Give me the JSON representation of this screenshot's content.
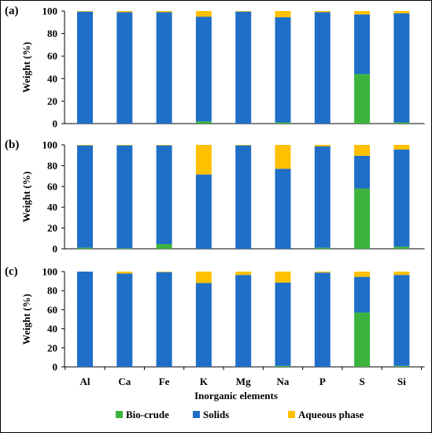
{
  "figure": {
    "x_axis_title": "Inorganic elements",
    "y_axis_title": "Weight (%)"
  },
  "colors": {
    "bio_crude": "#3CB33C",
    "solids": "#1F6FC9",
    "aqueous": "#FFC000"
  },
  "legend": {
    "items": [
      "Bio-crude",
      "Solids",
      "Aqueous phase"
    ]
  },
  "chart_data": [
    {
      "type": "bar",
      "stacked": true,
      "panel": "(a)",
      "categories": [
        "Al",
        "Ca",
        "Fe",
        "K",
        "Mg",
        "Na",
        "P",
        "S",
        "Si"
      ],
      "ylim": [
        0,
        100
      ],
      "yticks": [
        0,
        20,
        40,
        60,
        80,
        100
      ],
      "series": [
        {
          "name": "Bio-crude",
          "values": [
            0,
            0,
            0,
            2,
            0,
            1,
            0,
            44,
            1
          ]
        },
        {
          "name": "Solids",
          "values": [
            99.5,
            99,
            99,
            93,
            99.5,
            93.5,
            99,
            53,
            97
          ]
        },
        {
          "name": "Aqueous phase",
          "values": [
            0.5,
            1,
            1,
            5,
            0.5,
            5.5,
            1,
            3,
            2
          ]
        }
      ]
    },
    {
      "type": "bar",
      "stacked": true,
      "panel": "(b)",
      "categories": [
        "Al",
        "Ca",
        "Fe",
        "K",
        "Mg",
        "Na",
        "P",
        "S",
        "Si"
      ],
      "ylim": [
        0,
        100
      ],
      "yticks": [
        0,
        20,
        40,
        60,
        80,
        100
      ],
      "series": [
        {
          "name": "Bio-crude",
          "values": [
            1,
            0.5,
            4.5,
            0,
            0,
            0,
            1,
            58,
            2
          ]
        },
        {
          "name": "Solids",
          "values": [
            98.5,
            99,
            95,
            71.5,
            99.5,
            77,
            97.5,
            31.5,
            93.5
          ]
        },
        {
          "name": "Aqueous phase",
          "values": [
            0.5,
            0.5,
            0.5,
            28.5,
            0.5,
            23,
            1.5,
            10.5,
            4.5
          ]
        }
      ]
    },
    {
      "type": "bar",
      "stacked": true,
      "panel": "(c)",
      "categories": [
        "Al",
        "Ca",
        "Fe",
        "K",
        "Mg",
        "Na",
        "P",
        "S",
        "Si"
      ],
      "ylim": [
        0,
        100
      ],
      "yticks": [
        0,
        20,
        40,
        60,
        80,
        100
      ],
      "series": [
        {
          "name": "Bio-crude",
          "values": [
            0,
            0,
            0,
            0,
            0,
            1,
            0,
            57,
            1
          ]
        },
        {
          "name": "Solids",
          "values": [
            100,
            98,
            99.5,
            88,
            96.5,
            87.5,
            99,
            37.5,
            95.5
          ]
        },
        {
          "name": "Aqueous phase",
          "values": [
            0,
            2,
            0.5,
            12,
            3.5,
            11.5,
            1,
            5.5,
            3.5
          ]
        }
      ]
    }
  ]
}
